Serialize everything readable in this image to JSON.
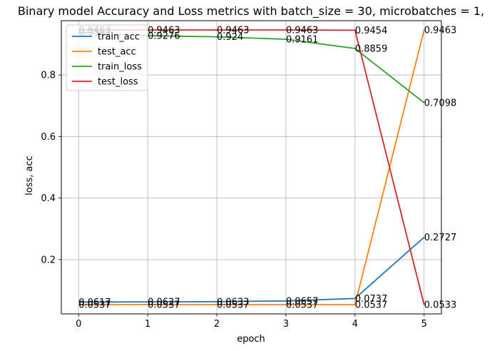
{
  "chart_data": {
    "type": "line",
    "title": "Binary model Accuracy and Loss metrics with batch_size = 30, microbatches = 1,",
    "xlabel": "epoch",
    "ylabel": "loss, acc",
    "x": [
      0,
      1,
      2,
      3,
      4,
      5
    ],
    "xlim": [
      -0.25,
      5.25
    ],
    "ylim": [
      0.0235,
      0.9764
    ],
    "xticks": [
      "0",
      "1",
      "2",
      "3",
      "4",
      "5"
    ],
    "yticks": [
      "0.2",
      "0.4",
      "0.6",
      "0.8"
    ],
    "ytick_values": [
      0.2,
      0.4,
      0.6,
      0.8
    ],
    "grid": true,
    "legend_position": "top-left",
    "series": [
      {
        "name": "train_acc",
        "color": "#1f77b4",
        "values": [
          0.0617,
          0.0627,
          0.0633,
          0.0657,
          0.0737,
          0.2727
        ],
        "labels": [
          "0.0617",
          "0.0627",
          "0.0633",
          "0.0657",
          "0.0737",
          "0.2727"
        ]
      },
      {
        "name": "test_acc",
        "color": "#ff7f0e",
        "values": [
          0.0537,
          0.0537,
          0.0537,
          0.0537,
          0.0537,
          0.9463
        ],
        "labels": [
          "0.0537",
          "0.0537",
          "0.0537",
          "0.0537",
          "0.0537",
          "0.9463"
        ]
      },
      {
        "name": "train_loss",
        "color": "#2ca02c",
        "values": [
          0.9383,
          0.9276,
          0.924,
          0.9161,
          0.8859,
          0.7098
        ],
        "labels": [
          "0.9383",
          "0.9276",
          "0.924",
          "0.9161",
          "0.8859",
          "0.7098"
        ]
      },
      {
        "name": "test_loss",
        "color": "#d62728",
        "values": [
          0.9463,
          0.9463,
          0.9463,
          0.9463,
          0.9454,
          0.0533
        ],
        "labels": [
          "0.9463",
          "0.9463",
          "0.9463",
          "0.9463",
          "0.9454",
          "0.0533"
        ]
      }
    ]
  }
}
